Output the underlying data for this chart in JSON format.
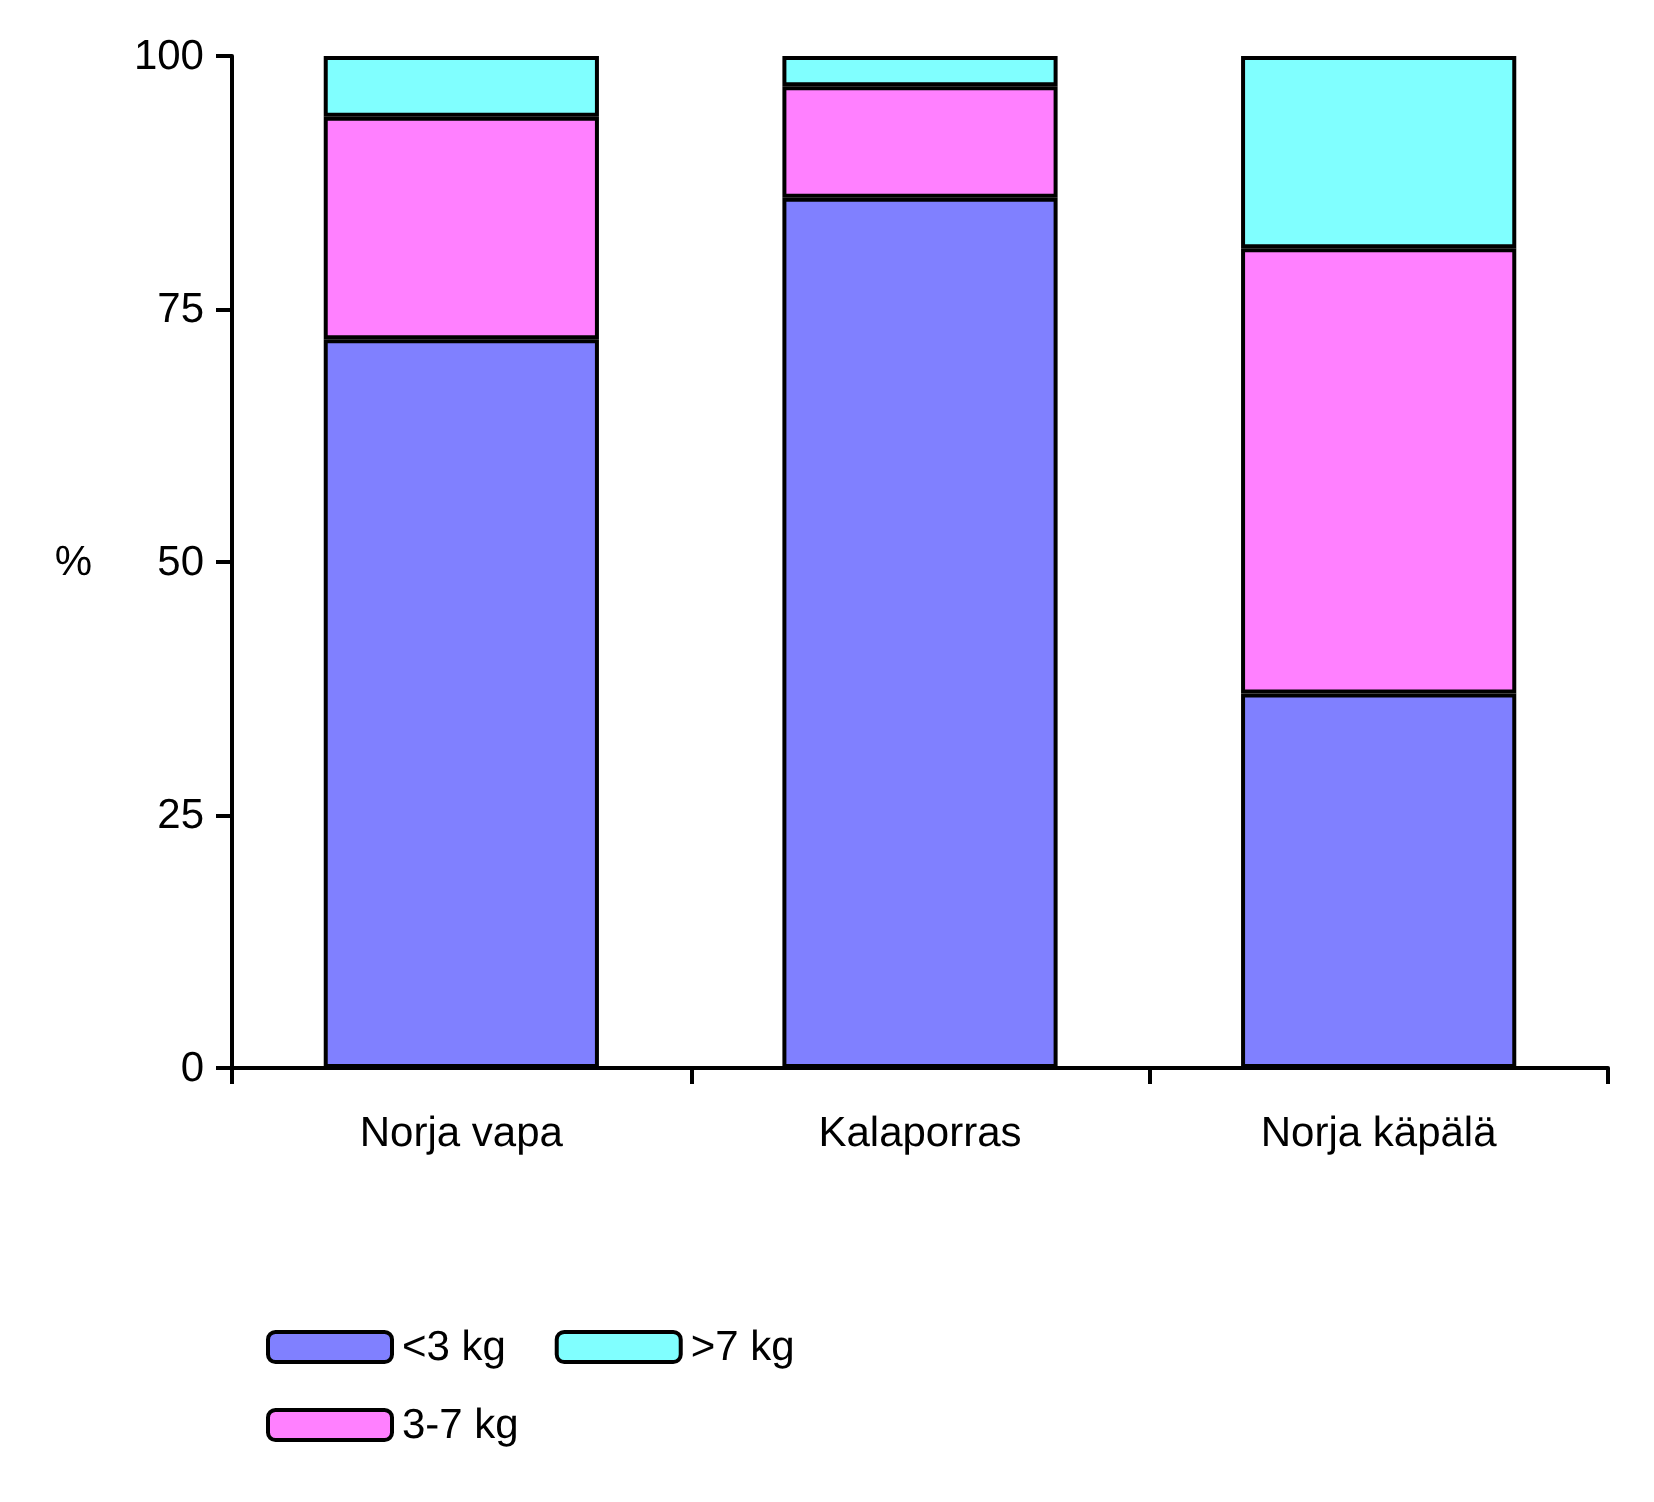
{
  "chart_data": {
    "type": "bar",
    "stacked": true,
    "ylabel": "%",
    "categories": [
      "Norja vapa",
      "Kalaporras",
      "Norja käpälä"
    ],
    "series": [
      {
        "name": "<3 kg",
        "color": "#8080ff",
        "values": [
          72,
          86,
          37
        ]
      },
      {
        "name": "3-7 kg",
        "color": "#ff80ff",
        "values": [
          22,
          11,
          44
        ]
      },
      {
        "name": ">7 kg",
        "color": "#80ffff",
        "values": [
          6,
          3,
          19
        ]
      }
    ],
    "ylim": [
      0,
      100
    ],
    "yticks": [
      0,
      25,
      50,
      75,
      100
    ],
    "grid": false,
    "legend": "bottom left"
  }
}
